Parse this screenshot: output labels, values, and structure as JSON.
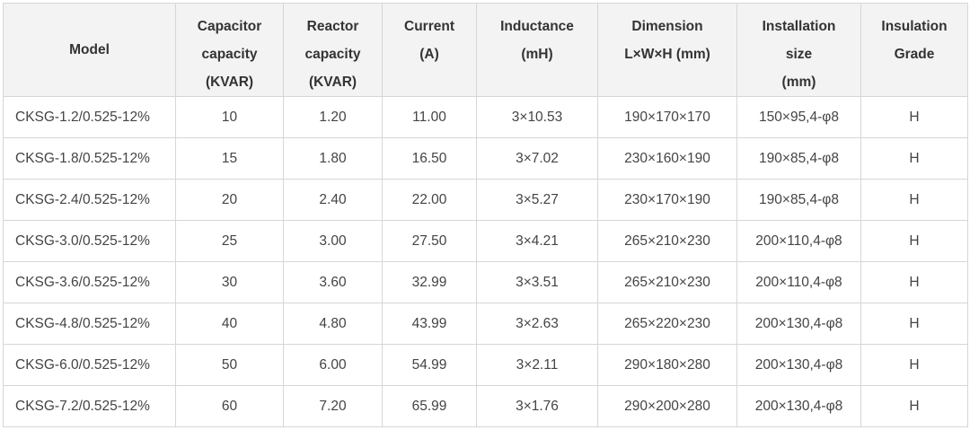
{
  "table": {
    "header": [
      [
        "Model"
      ],
      [
        "Capacitor",
        "capacity",
        "(KVAR)"
      ],
      [
        "Reactor",
        "capacity",
        "(KVAR)"
      ],
      [
        "Current",
        "(A)"
      ],
      [
        "Inductance",
        "(mH)"
      ],
      [
        "Dimension",
        "L×W×H (mm)"
      ],
      [
        "Installation",
        "size",
        "(mm)"
      ],
      [
        "Insulation",
        "Grade"
      ]
    ],
    "rows": [
      [
        "CKSG-1.2/0.525-12%",
        "10",
        "1.20",
        "11.00",
        "3×10.53",
        "190×170×170",
        "150×95,4-φ8",
        "H"
      ],
      [
        "CKSG-1.8/0.525-12%",
        "15",
        "1.80",
        "16.50",
        "3×7.02",
        "230×160×190",
        "190×85,4-φ8",
        "H"
      ],
      [
        "CKSG-2.4/0.525-12%",
        "20",
        "2.40",
        "22.00",
        "3×5.27",
        "230×170×190",
        "190×85,4-φ8",
        "H"
      ],
      [
        "CKSG-3.0/0.525-12%",
        "25",
        "3.00",
        "27.50",
        "3×4.21",
        "265×210×230",
        "200×110,4-φ8",
        "H"
      ],
      [
        "CKSG-3.6/0.525-12%",
        "30",
        "3.60",
        "32.99",
        "3×3.51",
        "265×210×230",
        "200×110,4-φ8",
        "H"
      ],
      [
        "CKSG-4.8/0.525-12%",
        "40",
        "4.80",
        "43.99",
        "3×2.63",
        "265×220×230",
        "200×130,4-φ8",
        "H"
      ],
      [
        "CKSG-6.0/0.525-12%",
        "50",
        "6.00",
        "54.99",
        "3×2.11",
        "290×180×280",
        "200×130,4-φ8",
        "H"
      ],
      [
        "CKSG-7.2/0.525-12%",
        "60",
        "7.20",
        "65.99",
        "3×1.76",
        "290×200×280",
        "200×130,4-φ8",
        "H"
      ]
    ]
  }
}
